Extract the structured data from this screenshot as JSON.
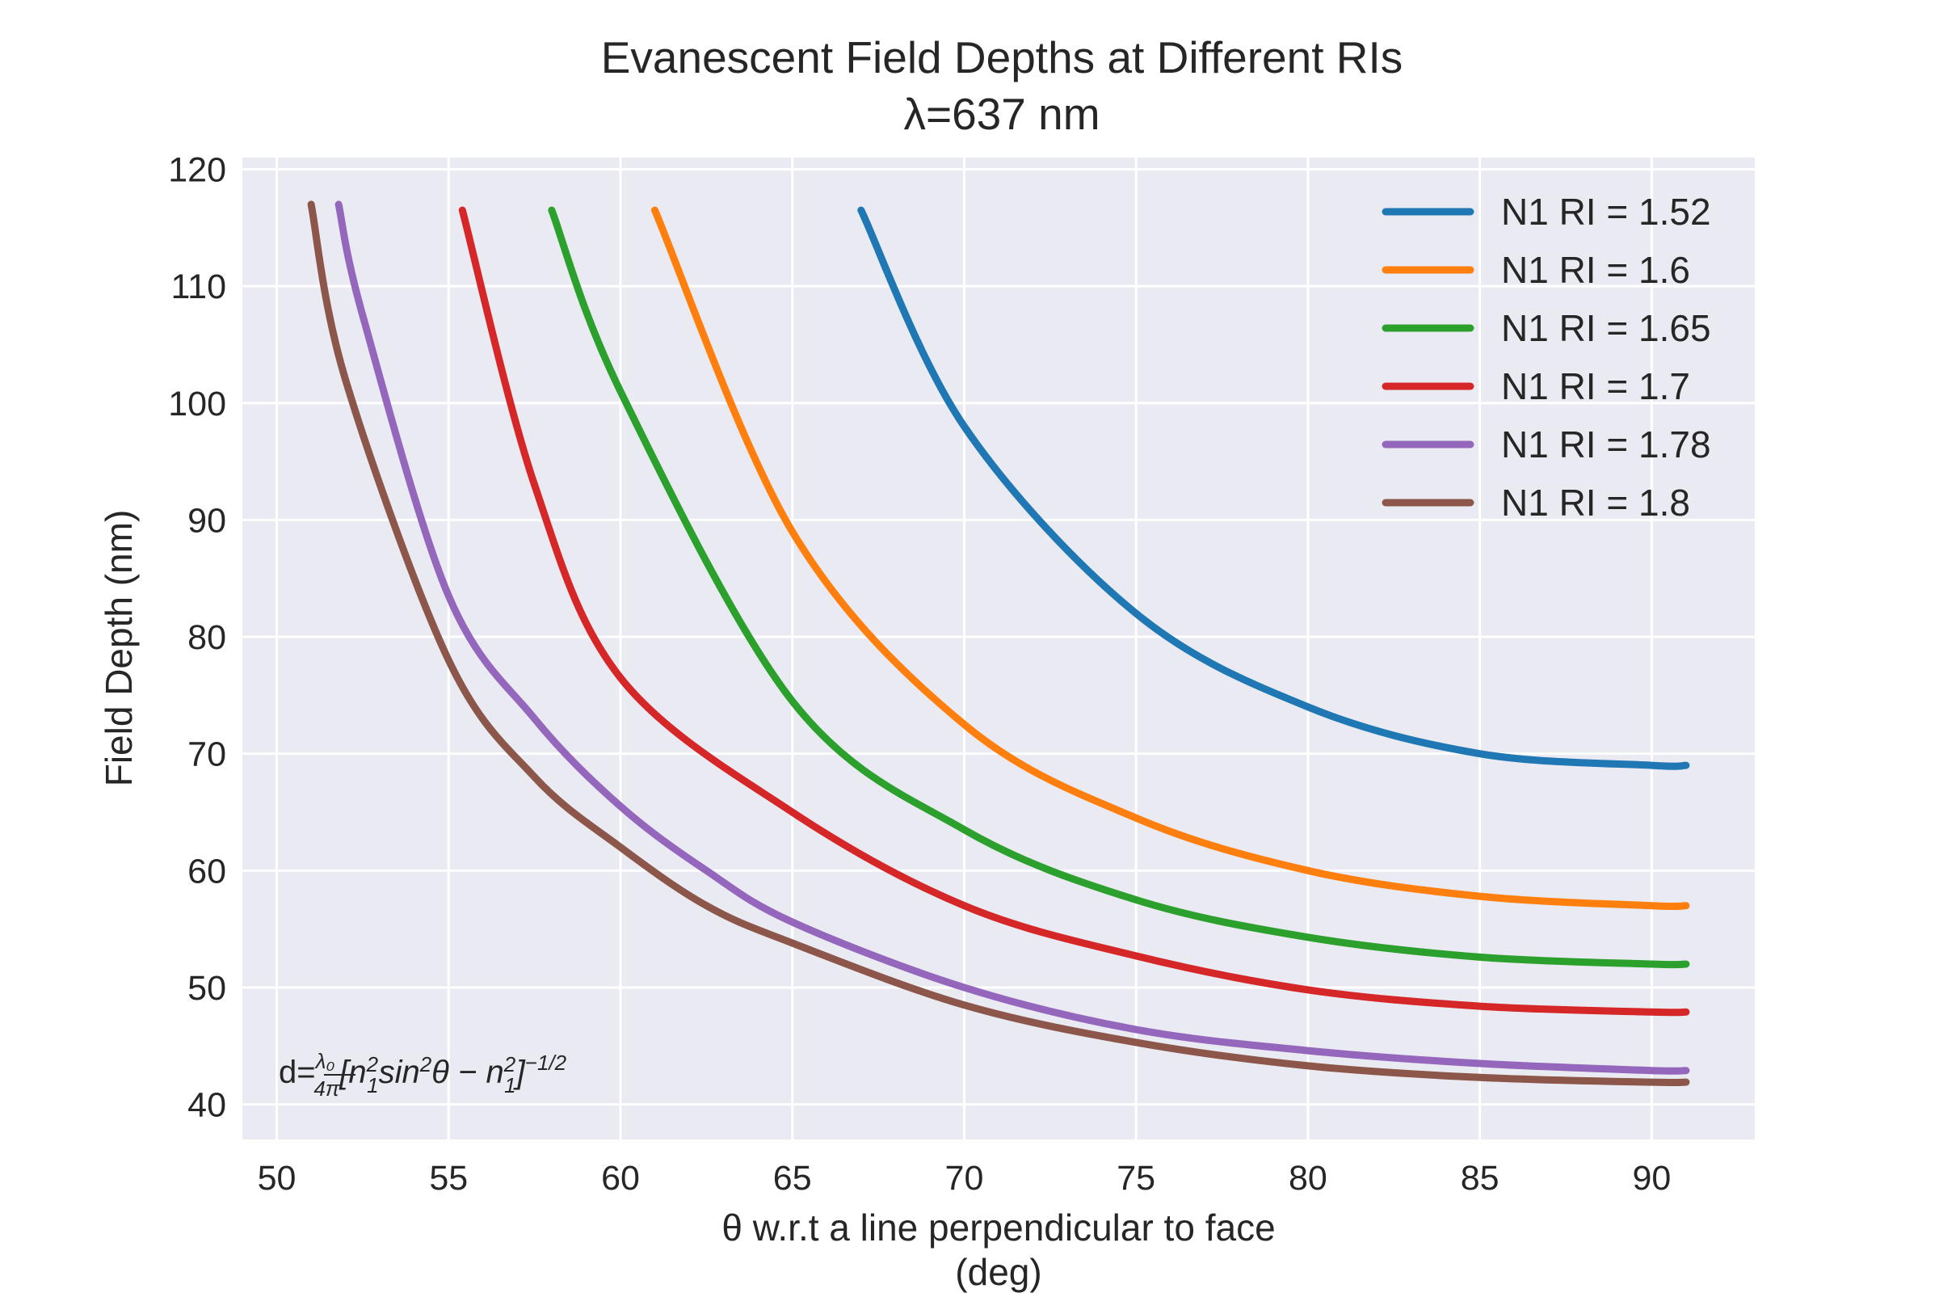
{
  "chart_data": {
    "type": "line",
    "title": "Evanescent Field Depths at Different RIs",
    "subtitle": "λ=637 nm",
    "xlabel": "θ w.r.t a line perpendicular to face",
    "xlabel_unit": "(deg)",
    "ylabel": "Field Depth (nm)",
    "xlim": [
      49,
      93
    ],
    "ylim": [
      37,
      121
    ],
    "xticks": [
      50,
      55,
      60,
      65,
      70,
      75,
      80,
      85,
      90
    ],
    "yticks": [
      40,
      50,
      60,
      70,
      80,
      90,
      100,
      110,
      120
    ],
    "grid": true,
    "legend_position": "top-right",
    "annotation": "d=λ₀/4π[n₁²sin²θ − n₁²]^−1/2",
    "series": [
      {
        "name": "N1 RI = 1.52",
        "color": "#1f77b4",
        "x": [
          67,
          70,
          75,
          80,
          85,
          90,
          91
        ],
        "y": [
          116.5,
          98,
          82,
          74,
          70,
          69,
          69
        ]
      },
      {
        "name": "N1 RI = 1.6",
        "color": "#ff7f0e",
        "x": [
          61,
          65,
          70,
          75,
          80,
          85,
          90,
          91
        ],
        "y": [
          116.5,
          89,
          72.5,
          64.5,
          60,
          57.8,
          57,
          57
        ]
      },
      {
        "name": "N1 RI = 1.65",
        "color": "#2ca02c",
        "x": [
          58,
          60,
          65,
          70,
          75,
          80,
          85,
          90,
          91
        ],
        "y": [
          116.5,
          101,
          74.5,
          63.5,
          57.5,
          54.3,
          52.6,
          52,
          52
        ]
      },
      {
        "name": "N1 RI = 1.7",
        "color": "#d62728",
        "x": [
          55.4,
          57.5,
          60,
          65,
          70,
          75,
          80,
          85,
          90,
          91
        ],
        "y": [
          116.5,
          93,
          76.5,
          65,
          57,
          52.7,
          49.8,
          48.4,
          47.9,
          47.9
        ]
      },
      {
        "name": "N1 RI = 1.78",
        "color": "#9467bd",
        "x": [
          51.8,
          52.5,
          55,
          57.5,
          60,
          62.5,
          65,
          70,
          75,
          80,
          85,
          90,
          91
        ],
        "y": [
          117,
          107.5,
          83.5,
          73,
          65.5,
          60,
          55.6,
          50,
          46.4,
          44.6,
          43.5,
          42.9,
          42.9
        ]
      },
      {
        "name": "N1 RI = 1.8",
        "color": "#8c564b",
        "x": [
          51,
          52,
          55,
          57.5,
          60,
          62.5,
          65,
          70,
          75,
          80,
          85,
          90,
          91
        ],
        "y": [
          117,
          102,
          78,
          68,
          62,
          57,
          53.8,
          48.5,
          45.3,
          43.3,
          42.3,
          41.9,
          41.9
        ]
      }
    ]
  }
}
